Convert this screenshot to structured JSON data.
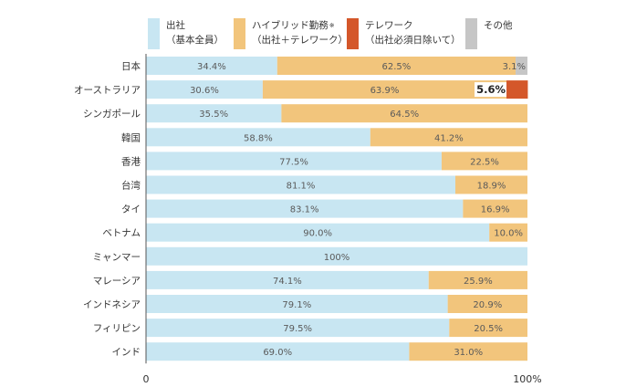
{
  "legend": {
    "onsite": {
      "line1": "出社",
      "line2": "（基本全員）",
      "color": "#c8e6f2"
    },
    "hybrid": {
      "line1": "ハイブリッド勤務",
      "mark": "※",
      "line2": "（出社＋テレワーク）",
      "color": "#f2c57c"
    },
    "remote": {
      "line1": "テレワーク",
      "line2": "（出社必須日除いて）",
      "color": "#d4572a"
    },
    "other": {
      "line1": "その他",
      "color": "#c6c6c6"
    }
  },
  "chart_data": {
    "type": "bar",
    "orientation": "horizontal",
    "stacked": true,
    "percent_stacked": true,
    "categories": [
      "日本",
      "オーストラリア",
      "シンガポール",
      "韓国",
      "香港",
      "台湾",
      "タイ",
      "ベトナム",
      "ミャンマー",
      "マレーシア",
      "インドネシア",
      "フィリピン",
      "インド"
    ],
    "series": [
      {
        "name": "出社（基本全員）",
        "color": "#c8e6f2",
        "values": [
          34.4,
          30.6,
          35.5,
          58.8,
          77.5,
          81.1,
          83.1,
          90.0,
          100,
          74.1,
          79.1,
          79.5,
          69.0
        ],
        "labels": [
          "34.4%",
          "30.6%",
          "35.5%",
          "58.8%",
          "77.5%",
          "81.1%",
          "83.1%",
          "90.0%",
          "100%",
          "74.1%",
          "79.1%",
          "79.5%",
          "69.0%"
        ]
      },
      {
        "name": "ハイブリッド勤務※（出社＋テレワーク）",
        "color": "#f2c57c",
        "values": [
          62.5,
          63.9,
          64.5,
          41.2,
          22.5,
          18.9,
          16.9,
          10.0,
          0,
          25.9,
          20.9,
          20.5,
          31.0
        ],
        "labels": [
          "62.5%",
          "63.9%",
          "64.5%",
          "41.2%",
          "22.5%",
          "18.9%",
          "16.9%",
          "10.0%",
          "",
          "25.9%",
          "20.9%",
          "20.5%",
          "31.0%"
        ]
      },
      {
        "name": "テレワーク（出社必須日除いて）",
        "color": "#d4572a",
        "values": [
          0,
          5.6,
          0,
          0,
          0,
          0,
          0,
          0,
          0,
          0,
          0,
          0,
          0
        ],
        "labels": [
          "",
          "5.6%",
          "",
          "",
          "",
          "",
          "",
          "",
          "",
          "",
          "",
          "",
          ""
        ]
      },
      {
        "name": "その他",
        "color": "#c6c6c6",
        "values": [
          3.1,
          0,
          0,
          0,
          0,
          0,
          0,
          0,
          0,
          0,
          0,
          0,
          0
        ],
        "labels": [
          "3.1%",
          "",
          "",
          "",
          "",
          "",
          "",
          "",
          "",
          "",
          "",
          "",
          ""
        ]
      }
    ],
    "axis": {
      "min_label": "0",
      "max_label": "100%"
    },
    "xlim": [
      0,
      100
    ],
    "legend_position": "top"
  }
}
